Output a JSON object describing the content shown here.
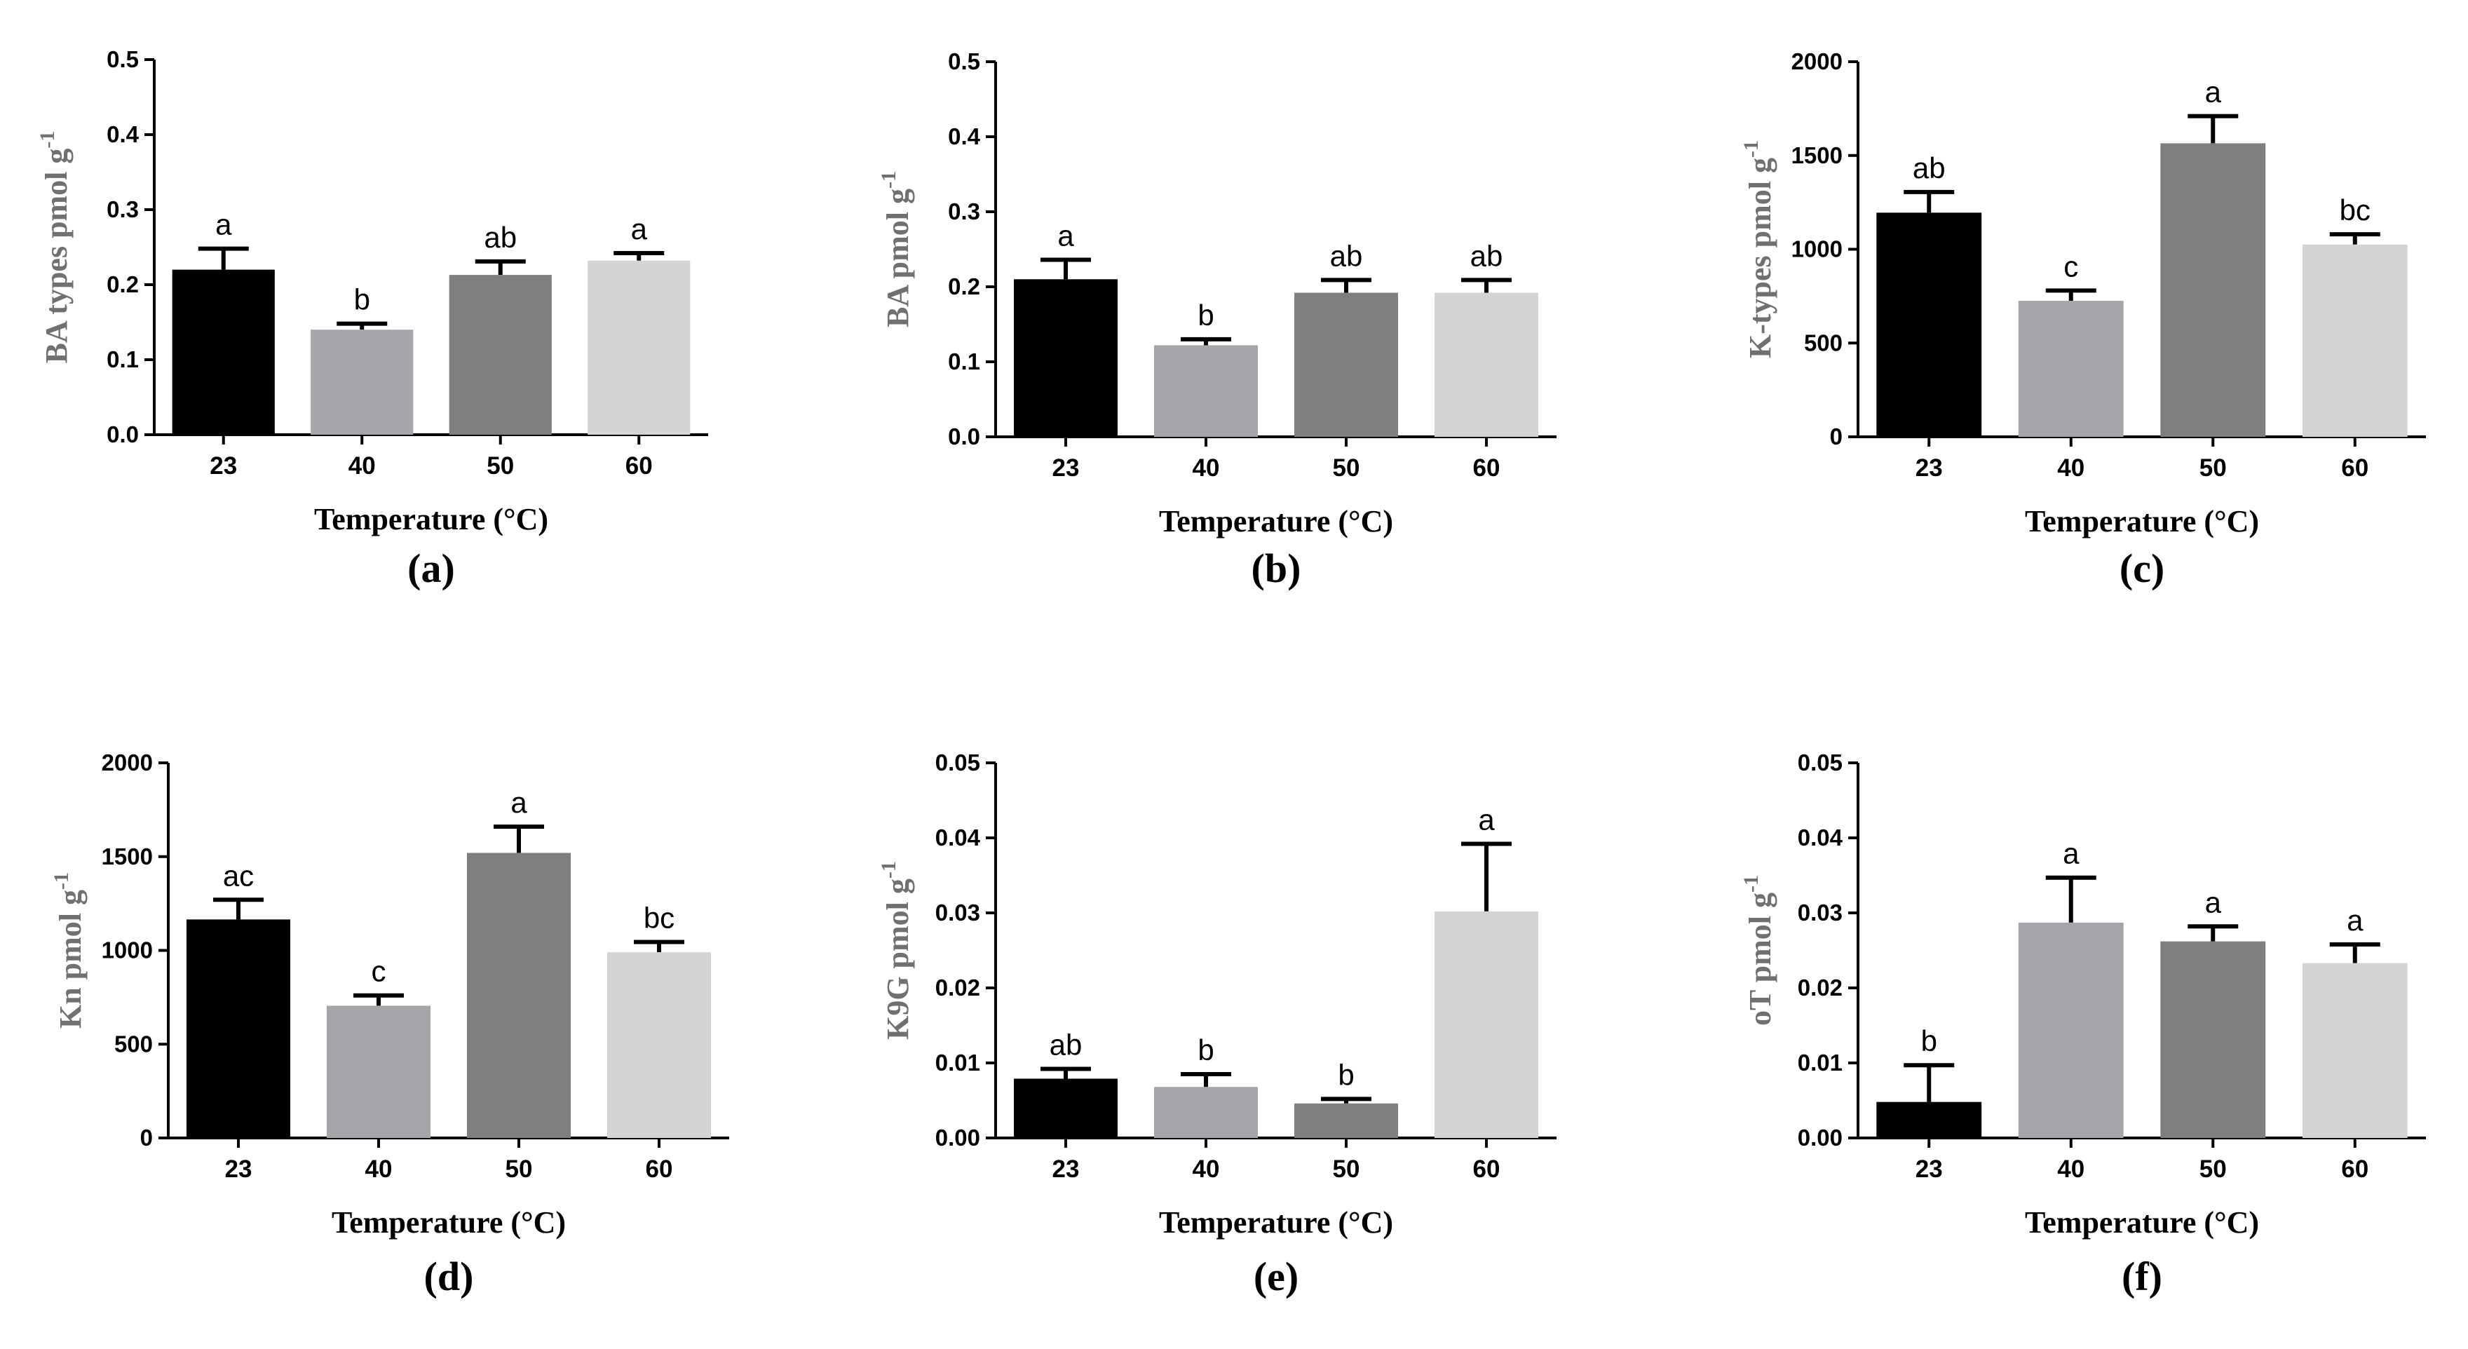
{
  "figure": {
    "bar_colors": [
      "#000000",
      "#a5a5ab",
      "#7f7f7f",
      "#d4d4d4"
    ],
    "axis_color": "#000000"
  },
  "chart_data": [
    {
      "type": "bar",
      "panel_label": "(a)",
      "title": "",
      "ylabel": "BA types pmol g",
      "ylabel_sup": "-1",
      "xlabel": "Temperature (°C)",
      "categories": [
        "23",
        "40",
        "50",
        "60"
      ],
      "values": [
        0.22,
        0.14,
        0.213,
        0.232
      ],
      "errors": [
        0.028,
        0.008,
        0.018,
        0.01
      ],
      "significance": [
        "a",
        "b",
        "ab",
        "a"
      ],
      "ylim": [
        0,
        0.5
      ],
      "yticks": [
        0.0,
        0.1,
        0.2,
        0.3,
        0.4,
        0.5
      ],
      "ytick_labels": [
        "0.0",
        "0.1",
        "0.2",
        "0.3",
        "0.4",
        "0.5"
      ]
    },
    {
      "type": "bar",
      "panel_label": "(b)",
      "title": "",
      "ylabel": "BA pmol g",
      "ylabel_sup": "-1",
      "xlabel": "Temperature (°C)",
      "categories": [
        "23",
        "40",
        "50",
        "60"
      ],
      "values": [
        0.21,
        0.122,
        0.192,
        0.192
      ],
      "errors": [
        0.026,
        0.008,
        0.017,
        0.017
      ],
      "significance": [
        "a",
        "b",
        "ab",
        "ab"
      ],
      "ylim": [
        0,
        0.5
      ],
      "yticks": [
        0.0,
        0.1,
        0.2,
        0.3,
        0.4,
        0.5
      ],
      "ytick_labels": [
        "0.0",
        "0.1",
        "0.2",
        "0.3",
        "0.4",
        "0.5"
      ]
    },
    {
      "type": "bar",
      "panel_label": "(c)",
      "title": "",
      "ylabel": "K-types pmol g",
      "ylabel_sup": "-1",
      "xlabel": "Temperature (°C)",
      "categories": [
        "23",
        "40",
        "50",
        "60"
      ],
      "values": [
        1195,
        725,
        1565,
        1025
      ],
      "errors": [
        110,
        55,
        145,
        55
      ],
      "significance": [
        "ab",
        "c",
        "a",
        "bc"
      ],
      "ylim": [
        0,
        2000
      ],
      "yticks": [
        0,
        500,
        1000,
        1500,
        2000
      ],
      "ytick_labels": [
        "0",
        "500",
        "1000",
        "1500",
        "2000"
      ]
    },
    {
      "type": "bar",
      "panel_label": "(d)",
      "title": "",
      "ylabel": "Kn pmol g",
      "ylabel_sup": "-1",
      "xlabel": "Temperature (°C)",
      "categories": [
        "23",
        "40",
        "50",
        "60"
      ],
      "values": [
        1165,
        705,
        1520,
        990
      ],
      "errors": [
        105,
        55,
        140,
        55
      ],
      "significance": [
        "ac",
        "c",
        "a",
        "bc"
      ],
      "ylim": [
        0,
        2000
      ],
      "yticks": [
        0,
        500,
        1000,
        1500,
        2000
      ],
      "ytick_labels": [
        "0",
        "500",
        "1000",
        "1500",
        "2000"
      ]
    },
    {
      "type": "bar",
      "panel_label": "(e)",
      "title": "",
      "ylabel": "K9G pmol g",
      "ylabel_sup": "-1",
      "xlabel": "Temperature (°C)",
      "categories": [
        "23",
        "40",
        "50",
        "60"
      ],
      "values": [
        0.0079,
        0.0068,
        0.0046,
        0.0302
      ],
      "errors": [
        0.0013,
        0.0017,
        0.0006,
        0.009
      ],
      "significance": [
        "ab",
        "b",
        "b",
        "a"
      ],
      "ylim": [
        0,
        0.05
      ],
      "yticks": [
        0.0,
        0.01,
        0.02,
        0.03,
        0.04,
        0.05
      ],
      "ytick_labels": [
        "0.00",
        "0.01",
        "0.02",
        "0.03",
        "0.04",
        "0.05"
      ]
    },
    {
      "type": "bar",
      "panel_label": "(f)",
      "title": "",
      "ylabel": "oT pmol g",
      "ylabel_sup": "-1",
      "xlabel": "Temperature (°C)",
      "categories": [
        "23",
        "40",
        "50",
        "60"
      ],
      "values": [
        0.0048,
        0.0287,
        0.0262,
        0.0233
      ],
      "errors": [
        0.0049,
        0.006,
        0.002,
        0.0025
      ],
      "significance": [
        "b",
        "a",
        "a",
        "a"
      ],
      "ylim": [
        0,
        0.05
      ],
      "yticks": [
        0.0,
        0.01,
        0.02,
        0.03,
        0.04,
        0.05
      ],
      "ytick_labels": [
        "0.00",
        "0.01",
        "0.02",
        "0.03",
        "0.04",
        "0.05"
      ]
    }
  ]
}
